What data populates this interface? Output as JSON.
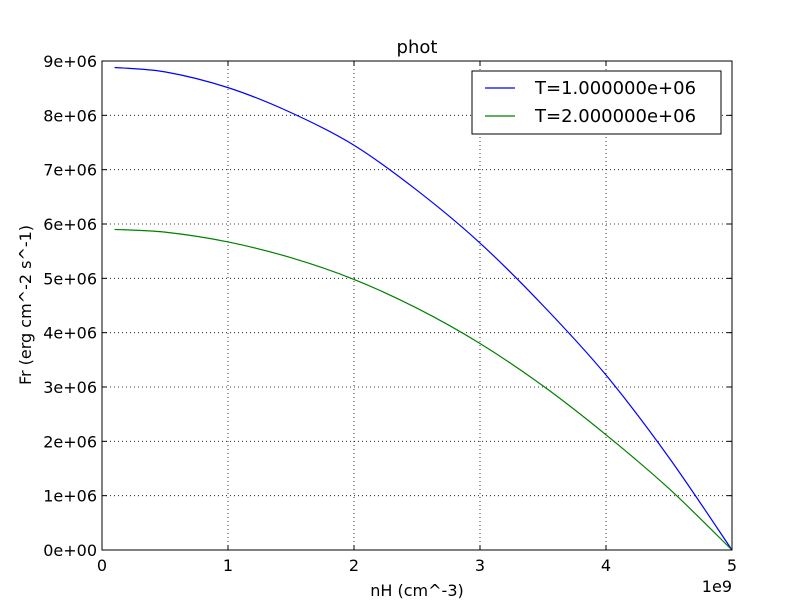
{
  "chart_data": {
    "type": "line",
    "title": "phot",
    "xlabel": "nH (cm^-3)",
    "ylabel": "Fr (erg cm^-2 s^-1)",
    "x_offset_label": "1e9",
    "xlim": [
      0,
      5
    ],
    "ylim": [
      0,
      9000000
    ],
    "x_ticks": [
      0,
      1,
      2,
      3,
      4,
      5
    ],
    "x_tick_labels": [
      "0",
      "1",
      "2",
      "3",
      "4",
      "5"
    ],
    "y_ticks": [
      0,
      1000000,
      2000000,
      3000000,
      4000000,
      5000000,
      6000000,
      7000000,
      8000000,
      9000000
    ],
    "y_tick_labels": [
      "0e+00",
      "1e+06",
      "2e+06",
      "3e+06",
      "4e+06",
      "5e+06",
      "6e+06",
      "7e+06",
      "8e+06",
      "9e+06"
    ],
    "grid": true,
    "legend_position": "top-right",
    "series": [
      {
        "name": "T=1.000000e+06",
        "color": "#0000ff",
        "x": [
          0.1,
          0.5,
          1.0,
          1.5,
          2.0,
          2.5,
          3.0,
          3.5,
          4.0,
          4.5,
          5.0
        ],
        "values": [
          8880000,
          8800000,
          8510000,
          8050000,
          7450000,
          6620000,
          5650000,
          4500000,
          3220000,
          1700000,
          0
        ]
      },
      {
        "name": "T=2.000000e+06",
        "color": "#008000",
        "x": [
          0.1,
          0.5,
          1.0,
          1.5,
          2.0,
          2.5,
          3.0,
          3.5,
          4.0,
          4.5,
          5.0
        ],
        "values": [
          5900000,
          5850000,
          5670000,
          5380000,
          4980000,
          4450000,
          3800000,
          3020000,
          2120000,
          1130000,
          0
        ]
      }
    ]
  }
}
